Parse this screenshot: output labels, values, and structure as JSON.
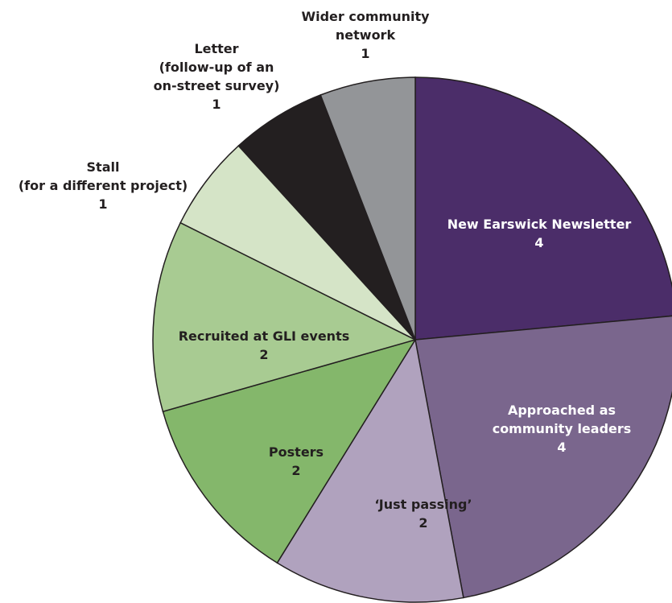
{
  "chart_data": {
    "type": "pie",
    "title": "",
    "start_angle_deg": 0,
    "direction": "clockwise",
    "slices": [
      {
        "label_lines": [
          "New Earswick Newsletter"
        ],
        "value": 4,
        "color": "#4b2d69",
        "text_color": "#ffffff"
      },
      {
        "label_lines": [
          "Approached as",
          "community leaders"
        ],
        "value": 4,
        "color": "#7a668d",
        "text_color": "#ffffff"
      },
      {
        "label_lines": [
          "‘Just passing’"
        ],
        "value": 2,
        "color": "#b0a2be",
        "text_color": "#231f20"
      },
      {
        "label_lines": [
          "Posters"
        ],
        "value": 2,
        "color": "#84b76b",
        "text_color": "#231f20"
      },
      {
        "label_lines": [
          "Recruited at GLI events"
        ],
        "value": 2,
        "color": "#a8cb92",
        "text_color": "#231f20"
      },
      {
        "label_lines": [
          "Stall",
          "(for a different project)"
        ],
        "value": 1,
        "color": "#d5e4c7",
        "text_color": "#231f20"
      },
      {
        "label_lines": [
          "Letter",
          "(follow-up of an",
          "on-street survey)"
        ],
        "value": 1,
        "color": "#231f20",
        "text_color": "#231f20"
      },
      {
        "label_lines": [
          "Wider community",
          "network"
        ],
        "value": 1,
        "color": "#939598",
        "text_color": "#231f20"
      }
    ]
  }
}
